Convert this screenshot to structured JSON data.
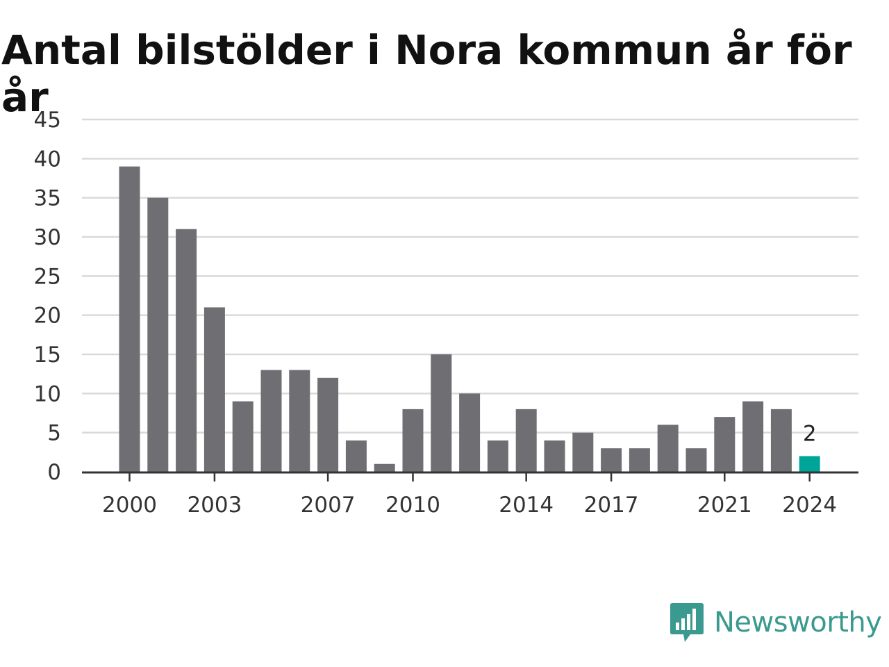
{
  "chart_data": {
    "type": "bar",
    "title": "Antal bilstölder i Nora kommun år för år",
    "xlabel": "",
    "ylabel": "",
    "x": [
      2000,
      2001,
      2002,
      2003,
      2004,
      2005,
      2006,
      2007,
      2008,
      2009,
      2010,
      2011,
      2012,
      2013,
      2014,
      2015,
      2016,
      2017,
      2018,
      2019,
      2020,
      2021,
      2022,
      2023,
      2024
    ],
    "values": [
      39,
      35,
      31,
      21,
      9,
      13,
      13,
      12,
      4,
      1,
      8,
      15,
      10,
      4,
      8,
      4,
      5,
      3,
      3,
      6,
      3,
      7,
      9,
      8,
      2
    ],
    "ylim": [
      0,
      45
    ],
    "yticks": [
      "0",
      "5",
      "10",
      "15",
      "20",
      "25",
      "30",
      "35",
      "40",
      "45"
    ],
    "xticks": [
      "2000",
      "2003",
      "2007",
      "2010",
      "2014",
      "2017",
      "2021",
      "2024"
    ],
    "highlight": {
      "x": 2024,
      "label": "2"
    },
    "grid": true,
    "colors": {
      "bar": "#6f6e73",
      "highlight": "#00a59a",
      "grid": "#d9d9d9",
      "axis": "#333333"
    }
  },
  "brand": {
    "name": "Newsworthy",
    "color": "#3a9a8f"
  }
}
